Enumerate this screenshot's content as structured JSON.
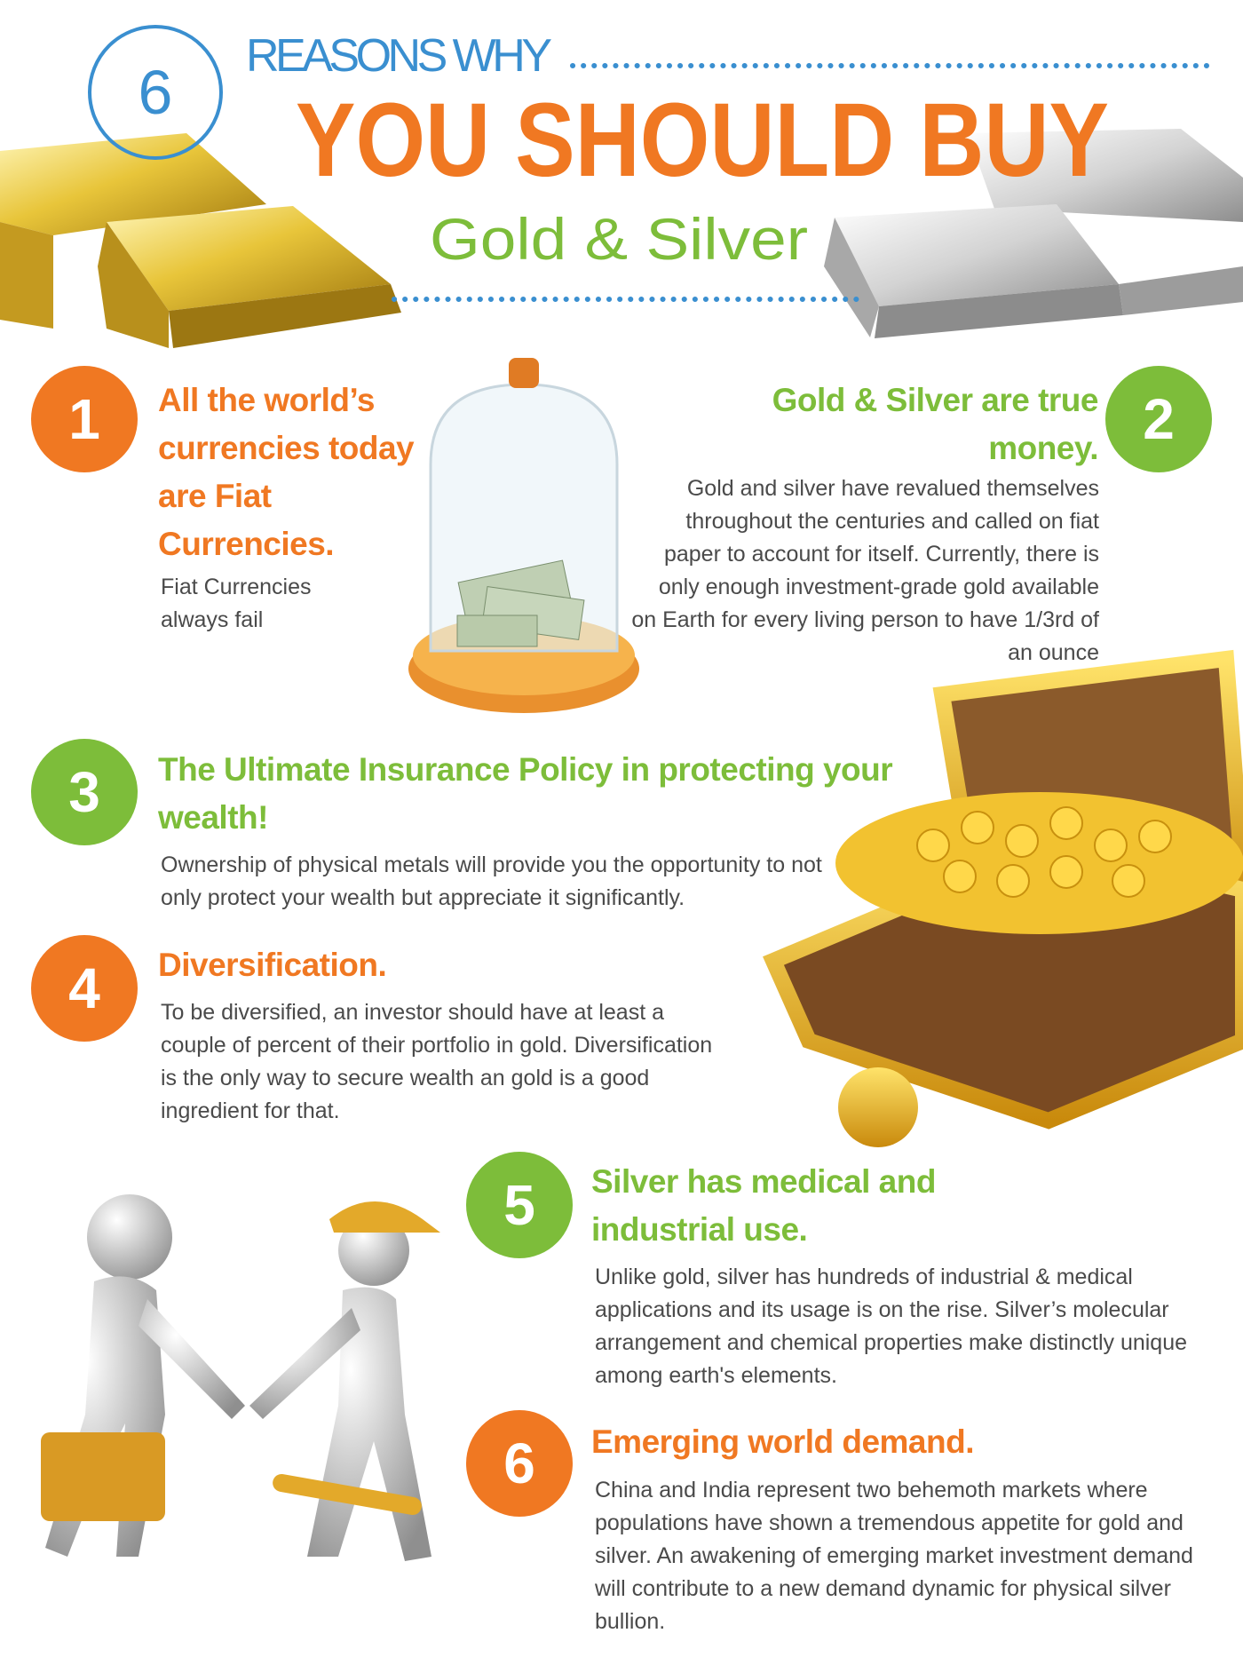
{
  "header": {
    "number": "6",
    "kicker": "REASONS WHY",
    "title": "YOU SHOULD BUY",
    "subtitle": "Gold & Silver"
  },
  "reasons": [
    {
      "number": "1",
      "title": "All the world’s currencies today are Fiat Currencies.",
      "body": "Fiat Currencies always fail"
    },
    {
      "number": "2",
      "title": "Gold & Silver are true money.",
      "body": "Gold and silver have revalued themselves throughout the centuries and called on fiat paper to account for itself. Currently, there is only enough investment-grade gold available on Earth for every living person to have 1/3rd of an ounce"
    },
    {
      "number": "3",
      "title": "The Ultimate Insurance Policy in protecting your wealth!",
      "body": "Ownership of physical metals will provide you the opportunity to not only protect your wealth but appreciate it significantly."
    },
    {
      "number": "4",
      "title": "Diversification.",
      "body": "To be diversified, an investor should have at least a couple of percent of their portfolio in gold. Diversification is the only way to secure wealth an gold is a good ingredient for that."
    },
    {
      "number": "5",
      "title": "Silver has medical and industrial use.",
      "body": "Unlike gold, silver has hundreds of industrial & medical applications and its usage is on the rise.  Silver’s molecular arrangement and chemical properties make distinctly unique among earth's elements."
    },
    {
      "number": "6",
      "title": "Emerging world demand.",
      "body": "China and India represent two behemoth markets where populations have shown a tremendous appetite for gold and silver.  An awakening of emerging market investment demand will contribute to a new demand dynamic for physical silver bullion."
    }
  ]
}
